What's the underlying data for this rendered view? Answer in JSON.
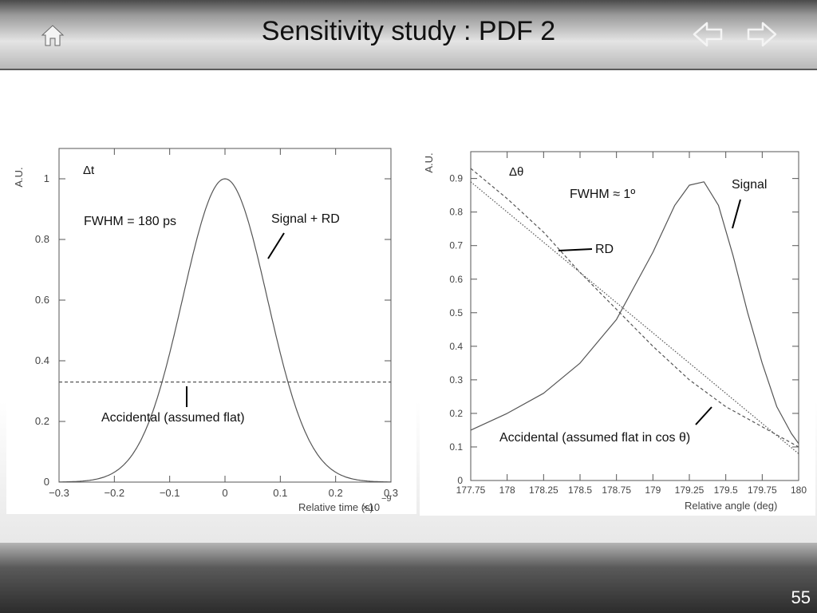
{
  "title": "Sensitivity study : PDF 2",
  "page_number": "55",
  "header": {
    "icons": [
      "home-icon",
      "back-arrow-icon",
      "forward-arrow-icon"
    ]
  },
  "chart_data": [
    {
      "type": "line",
      "ylabel": "A.U.",
      "xlabel": "Relative time (s)",
      "x_exponent_label": "×10",
      "x_exponent": "−9",
      "xlim": [
        -0.3,
        0.3
      ],
      "ylim": [
        0,
        1.1
      ],
      "xticks": [
        -0.3,
        -0.2,
        -0.1,
        0,
        0.1,
        0.2,
        0.3
      ],
      "xtick_labels": [
        "−0.3",
        "−0.2",
        "−0.1",
        "0",
        "0.1",
        "0.2",
        "0.3"
      ],
      "yticks": [
        0,
        0.2,
        0.4,
        0.6,
        0.8,
        1
      ],
      "ytick_labels": [
        "0",
        "0.2",
        "0.4",
        "0.6",
        "0.8",
        "1"
      ],
      "annotations": {
        "label": "Δt",
        "fwhm": "FWHM = 180 ps",
        "signal": "Signal + RD",
        "accidental": "Accidental (assumed flat)"
      },
      "series": [
        {
          "style": "solid",
          "shape": "gaussian",
          "mean": 0,
          "fwhm": 0.18,
          "peak": 1
        },
        {
          "style": "dashed",
          "shape": "flat",
          "level": 0.33
        }
      ]
    },
    {
      "type": "line",
      "ylabel": "A.U.",
      "xlabel": "Relative angle (deg)",
      "xlim": [
        177.75,
        180
      ],
      "ylim": [
        0,
        0.98
      ],
      "xticks": [
        177.75,
        178,
        178.25,
        178.5,
        178.75,
        179,
        179.25,
        179.5,
        179.75,
        180
      ],
      "xtick_labels": [
        "177.75",
        "178",
        "178.25",
        "178.5",
        "178.75",
        "179",
        "179.25",
        "179.5",
        "179.75",
        "180"
      ],
      "yticks": [
        0,
        0.1,
        0.2,
        0.3,
        0.4,
        0.5,
        0.6,
        0.7,
        0.8,
        0.9
      ],
      "ytick_labels": [
        "0",
        "0.1",
        "0.2",
        "0.3",
        "0.4",
        "0.5",
        "0.6",
        "0.7",
        "0.8",
        "0.9"
      ],
      "annotations": {
        "label": "Δθ",
        "fwhm": "FWHM ≈ 1º",
        "signal": "Signal",
        "rd": "RD",
        "accidental": "Accidental (assumed flat in cos θ)"
      },
      "series": [
        {
          "style": "solid",
          "x": [
            177.75,
            178.0,
            178.25,
            178.5,
            178.75,
            179.0,
            179.15,
            179.25,
            179.35,
            179.45,
            179.55,
            179.65,
            179.75,
            179.85,
            179.95,
            180.0
          ],
          "y": [
            0.15,
            0.2,
            0.26,
            0.35,
            0.48,
            0.68,
            0.82,
            0.88,
            0.89,
            0.82,
            0.67,
            0.5,
            0.35,
            0.22,
            0.14,
            0.11
          ]
        },
        {
          "style": "dashed",
          "x": [
            177.75,
            178.0,
            178.25,
            178.5,
            178.75,
            179.0,
            179.25,
            179.5,
            179.75,
            180.0
          ],
          "y": [
            0.93,
            0.84,
            0.74,
            0.62,
            0.51,
            0.4,
            0.3,
            0.22,
            0.16,
            0.1
          ]
        },
        {
          "style": "dotted",
          "x": [
            177.75,
            180.0
          ],
          "y": [
            0.89,
            0.08
          ]
        }
      ]
    }
  ]
}
